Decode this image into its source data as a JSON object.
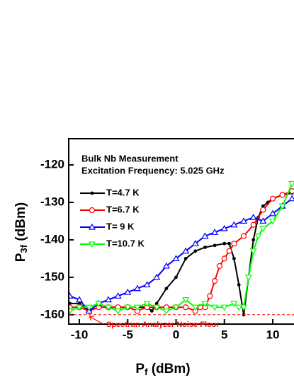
{
  "chart_data": {
    "type": "line",
    "title": "Bulk Nb Measurement",
    "subtitle": "Excitation Frequency: 5.025 GHz",
    "x_label": {
      "base": "P",
      "sub": "f",
      "unit": "(dBm)"
    },
    "y_label": {
      "base": "P",
      "sub": "3f",
      "unit": "(dBm)"
    },
    "xlim": [
      -11.1,
      12.2
    ],
    "ylim": [
      -162.5,
      -113
    ],
    "xticks": [
      -10,
      -5,
      0,
      5,
      10
    ],
    "yticks": [
      -160,
      -150,
      -140,
      -130,
      -120
    ],
    "annotation": {
      "text": "Spectrun Analyzer Noise Floor",
      "color": "#ff0000",
      "y": -160
    },
    "series": [
      {
        "name": "T=4.7 K",
        "color": "#000000",
        "marker": "dot",
        "x": [
          -11,
          -10,
          -9,
          -8,
          -7,
          -6,
          -5,
          -4,
          -3,
          -2.5,
          -2,
          -1,
          0,
          1,
          2,
          3,
          4,
          5,
          5.5,
          6,
          6.5,
          7,
          7.5,
          8,
          8.5,
          9,
          9.5,
          10,
          11,
          12
        ],
        "values": [
          -157,
          -157,
          -159,
          -158,
          -158,
          -158,
          -158,
          -158,
          -158,
          -159,
          -157,
          -153,
          -150,
          -145,
          -143,
          -142,
          -141.5,
          -141,
          -141,
          -145,
          -152,
          -160,
          -150,
          -140,
          -134,
          -131,
          -130,
          -129,
          -128,
          -127.5
        ]
      },
      {
        "name": "T=6.7 K",
        "color": "#ff0000",
        "marker": "circle",
        "x": [
          -11,
          -10,
          -9,
          -8,
          -7,
          -6,
          -5,
          -4,
          -3,
          -2,
          -1,
          0,
          1,
          2,
          2.5,
          3,
          3.5,
          4,
          4.5,
          5,
          5.5,
          6,
          7,
          8,
          9,
          10,
          11,
          12
        ],
        "values": [
          -158,
          -158,
          -159,
          -158,
          -158,
          -158,
          -158,
          -159,
          -158,
          -158,
          -158,
          -158,
          -158,
          -159,
          -158,
          -158,
          -155,
          -151,
          -147,
          -145,
          -143,
          -141,
          -139,
          -136,
          -132,
          -129,
          -128,
          -127
        ]
      },
      {
        "name": "T= 9 K",
        "color": "#0000ff",
        "marker": "triangle",
        "x": [
          -11,
          -10,
          -9,
          -8,
          -7,
          -6,
          -5,
          -4,
          -3,
          -2,
          -1,
          0,
          1,
          2,
          3,
          4,
          5,
          6,
          7,
          8,
          9,
          10,
          11,
          12
        ],
        "values": [
          -155,
          -156,
          -159,
          -157,
          -156,
          -155,
          -154,
          -153,
          -152,
          -150,
          -147,
          -145,
          -143,
          -141,
          -139,
          -138,
          -137,
          -136,
          -135,
          -134,
          -135,
          -133,
          -131,
          -129
        ]
      },
      {
        "name": "T=10.7 K",
        "color": "#00ff00",
        "marker": "triangle-down",
        "x": [
          -11,
          -10,
          -9,
          -8,
          -7,
          -6,
          -5,
          -4,
          -3,
          -2,
          -1,
          0,
          1,
          2,
          3,
          4,
          5,
          6,
          6.5,
          7,
          7.5,
          8,
          8.5,
          9,
          10,
          11,
          12
        ],
        "values": [
          -159,
          -158,
          -158,
          -157,
          -158,
          -159,
          -158,
          -158,
          -157,
          -158,
          -159,
          -158,
          -156,
          -158,
          -157,
          -158,
          -158,
          -157,
          -158,
          -158,
          -150,
          -143,
          -139,
          -137,
          -135,
          -131,
          -125
        ]
      }
    ]
  }
}
